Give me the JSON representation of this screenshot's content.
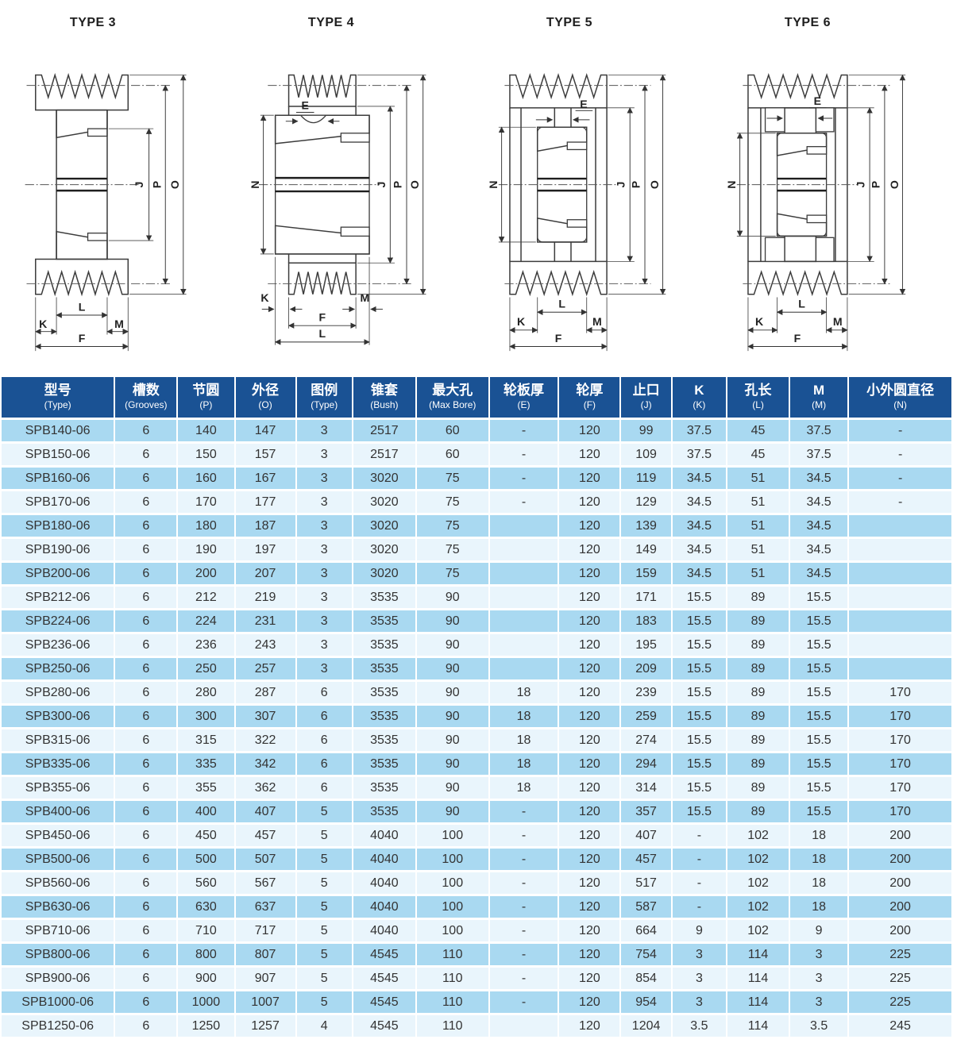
{
  "colors": {
    "header_bg": "#1a5294",
    "row_alt_blue": "#a9d9f1",
    "row_alt_light": "#e9f5fc",
    "header_text": "#ffffff",
    "body_text": "#333333"
  },
  "diagrams": {
    "type3": {
      "title": "TYPE 3",
      "labels": {
        "J": "J",
        "P": "P",
        "O": "O",
        "K": "K",
        "L": "L",
        "M": "M",
        "F": "F"
      }
    },
    "type4": {
      "title": "TYPE 4",
      "labels": {
        "E": "E",
        "N": "N",
        "J": "J",
        "P": "P",
        "O": "O",
        "K": "K",
        "L": "L",
        "M": "M",
        "F": "F"
      }
    },
    "type5": {
      "title": "TYPE 5",
      "labels": {
        "E": "E",
        "N": "N",
        "J": "J",
        "P": "P",
        "O": "O",
        "K": "K",
        "L": "L",
        "M": "M",
        "F": "F"
      }
    },
    "type6": {
      "title": "TYPE 6",
      "labels": {
        "E": "E",
        "N": "N",
        "J": "J",
        "P": "P",
        "O": "O",
        "K": "K",
        "L": "L",
        "M": "M",
        "F": "F"
      }
    }
  },
  "table": {
    "headers": [
      {
        "zh": "型号",
        "en": "(Type)"
      },
      {
        "zh": "槽数",
        "en": "(Grooves)"
      },
      {
        "zh": "节圆",
        "en": "(P)"
      },
      {
        "zh": "外径",
        "en": "(O)"
      },
      {
        "zh": "图例",
        "en": "(Type)"
      },
      {
        "zh": "锥套",
        "en": "(Bush)"
      },
      {
        "zh": "最大孔",
        "en": "(Max Bore)"
      },
      {
        "zh": "轮板厚",
        "en": "(E)"
      },
      {
        "zh": "轮厚",
        "en": "(F)"
      },
      {
        "zh": "止口",
        "en": "(J)"
      },
      {
        "zh": "K",
        "en": "(K)"
      },
      {
        "zh": "孔长",
        "en": "(L)"
      },
      {
        "zh": "M",
        "en": "(M)"
      },
      {
        "zh": "小外圆直径",
        "en": "(N)"
      }
    ],
    "rows": [
      [
        "SPB140-06",
        6,
        140,
        147,
        3,
        2517,
        60,
        "-",
        120,
        99,
        37.5,
        45,
        37.5,
        "-"
      ],
      [
        "SPB150-06",
        6,
        150,
        157,
        3,
        2517,
        60,
        "-",
        120,
        109,
        37.5,
        45,
        37.5,
        "-"
      ],
      [
        "SPB160-06",
        6,
        160,
        167,
        3,
        3020,
        75,
        "-",
        120,
        119,
        34.5,
        51,
        34.5,
        "-"
      ],
      [
        "SPB170-06",
        6,
        170,
        177,
        3,
        3020,
        75,
        "-",
        120,
        129,
        34.5,
        51,
        34.5,
        "-"
      ],
      [
        "SPB180-06",
        6,
        180,
        187,
        3,
        3020,
        75,
        "",
        120,
        139,
        34.5,
        51,
        34.5,
        ""
      ],
      [
        "SPB190-06",
        6,
        190,
        197,
        3,
        3020,
        75,
        "",
        120,
        149,
        34.5,
        51,
        34.5,
        ""
      ],
      [
        "SPB200-06",
        6,
        200,
        207,
        3,
        3020,
        75,
        "",
        120,
        159,
        34.5,
        51,
        34.5,
        ""
      ],
      [
        "SPB212-06",
        6,
        212,
        219,
        3,
        3535,
        90,
        "",
        120,
        171,
        15.5,
        89,
        15.5,
        ""
      ],
      [
        "SPB224-06",
        6,
        224,
        231,
        3,
        3535,
        90,
        "",
        120,
        183,
        15.5,
        89,
        15.5,
        ""
      ],
      [
        "SPB236-06",
        6,
        236,
        243,
        3,
        3535,
        90,
        "",
        120,
        195,
        15.5,
        89,
        15.5,
        ""
      ],
      [
        "SPB250-06",
        6,
        250,
        257,
        3,
        3535,
        90,
        "",
        120,
        209,
        15.5,
        89,
        15.5,
        ""
      ],
      [
        "SPB280-06",
        6,
        280,
        287,
        6,
        3535,
        90,
        18,
        120,
        239,
        15.5,
        89,
        15.5,
        170
      ],
      [
        "SPB300-06",
        6,
        300,
        307,
        6,
        3535,
        90,
        18,
        120,
        259,
        15.5,
        89,
        15.5,
        170
      ],
      [
        "SPB315-06",
        6,
        315,
        322,
        6,
        3535,
        90,
        18,
        120,
        274,
        15.5,
        89,
        15.5,
        170
      ],
      [
        "SPB335-06",
        6,
        335,
        342,
        6,
        3535,
        90,
        18,
        120,
        294,
        15.5,
        89,
        15.5,
        170
      ],
      [
        "SPB355-06",
        6,
        355,
        362,
        6,
        3535,
        90,
        18,
        120,
        314,
        15.5,
        89,
        15.5,
        170
      ],
      [
        "SPB400-06",
        6,
        400,
        407,
        5,
        3535,
        90,
        "-",
        120,
        357,
        15.5,
        89,
        15.5,
        170
      ],
      [
        "SPB450-06",
        6,
        450,
        457,
        5,
        4040,
        100,
        "-",
        120,
        407,
        "-",
        102,
        18,
        200
      ],
      [
        "SPB500-06",
        6,
        500,
        507,
        5,
        4040,
        100,
        "-",
        120,
        457,
        "-",
        102,
        18,
        200
      ],
      [
        "SPB560-06",
        6,
        560,
        567,
        5,
        4040,
        100,
        "-",
        120,
        517,
        "-",
        102,
        18,
        200
      ],
      [
        "SPB630-06",
        6,
        630,
        637,
        5,
        4040,
        100,
        "-",
        120,
        587,
        "-",
        102,
        18,
        200
      ],
      [
        "SPB710-06",
        6,
        710,
        717,
        5,
        4040,
        100,
        "-",
        120,
        664,
        9,
        102,
        9,
        200
      ],
      [
        "SPB800-06",
        6,
        800,
        807,
        5,
        4545,
        110,
        "-",
        120,
        754,
        3,
        114,
        3,
        225
      ],
      [
        "SPB900-06",
        6,
        900,
        907,
        5,
        4545,
        110,
        "-",
        120,
        854,
        3,
        114,
        3,
        225
      ],
      [
        "SPB1000-06",
        6,
        1000,
        1007,
        5,
        4545,
        110,
        "-",
        120,
        954,
        3,
        114,
        3,
        225
      ],
      [
        "SPB1250-06",
        6,
        1250,
        1257,
        4,
        4545,
        110,
        "",
        120,
        1204,
        3.5,
        114,
        3.5,
        245
      ]
    ]
  }
}
